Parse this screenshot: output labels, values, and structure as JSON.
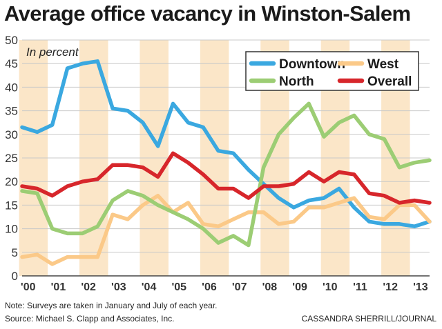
{
  "title": "Average office vacancy in Winston-Salem",
  "note": "Note: Surveys are taken in January and July of each year.",
  "source": "Source: Michael S. Clapp and Associates, Inc.",
  "credit": "CASSANDRA SHERRILL/JOURNAL",
  "chart_data": {
    "type": "line",
    "unit_label": "In percent",
    "ylim": [
      0,
      50
    ],
    "yticks": [
      0,
      5,
      10,
      15,
      20,
      25,
      30,
      35,
      40,
      45,
      50
    ],
    "xlim": [
      2000,
      2013.5
    ],
    "xtick_labels": [
      "'00",
      "'01",
      "'02",
      "'03",
      "'04",
      "'05",
      "'06",
      "'07",
      "'08",
      "'09",
      "'10",
      "'11",
      "'12",
      "'13"
    ],
    "x": [
      2000.0,
      2000.5,
      2001.0,
      2001.5,
      2002.0,
      2002.5,
      2003.0,
      2003.5,
      2004.0,
      2004.5,
      2005.0,
      2005.5,
      2006.0,
      2006.5,
      2007.0,
      2007.5,
      2008.0,
      2008.5,
      2009.0,
      2009.5,
      2010.0,
      2010.5,
      2011.0,
      2011.5,
      2012.0,
      2012.5,
      2013.0,
      2013.5
    ],
    "grid": "alternating vertical bands",
    "legend_position": "top-right",
    "series": [
      {
        "name": "Downtown",
        "color": "#3aa8e0",
        "values": [
          31.5,
          30.5,
          32,
          44,
          45,
          45.5,
          35.5,
          35,
          32.5,
          27.5,
          36.5,
          32.5,
          31.5,
          26.5,
          26,
          22.5,
          19.5,
          16.5,
          14.5,
          16,
          16.5,
          18.5,
          14.5,
          11.5,
          11,
          11,
          10.5,
          11.5
        ]
      },
      {
        "name": "West",
        "color": "#fbc988",
        "values": [
          4,
          4.5,
          2.5,
          4,
          4,
          4,
          13,
          12,
          15,
          17,
          13.5,
          15.5,
          11,
          10.5,
          12,
          13.5,
          13.5,
          11,
          11.5,
          14.5,
          14.5,
          15.5,
          16.5,
          12.5,
          12,
          15,
          15,
          11.5
        ]
      },
      {
        "name": "North",
        "color": "#9ccd74",
        "values": [
          18,
          17.5,
          10,
          9,
          9,
          10.5,
          16,
          18,
          17,
          15,
          13.5,
          12,
          10,
          7,
          8.5,
          6.5,
          23,
          30,
          33.5,
          36.5,
          29.5,
          32.5,
          34,
          30,
          29,
          23,
          24,
          24.5
        ]
      },
      {
        "name": "Overall",
        "color": "#d7262b",
        "values": [
          19,
          18.5,
          17,
          19,
          20,
          20.5,
          23.5,
          23.5,
          23,
          21,
          26,
          24,
          21.5,
          18.5,
          18.5,
          16.5,
          19,
          19,
          19.5,
          22,
          20,
          22,
          21.5,
          17.5,
          17,
          15.5,
          16,
          15.5
        ]
      }
    ]
  }
}
